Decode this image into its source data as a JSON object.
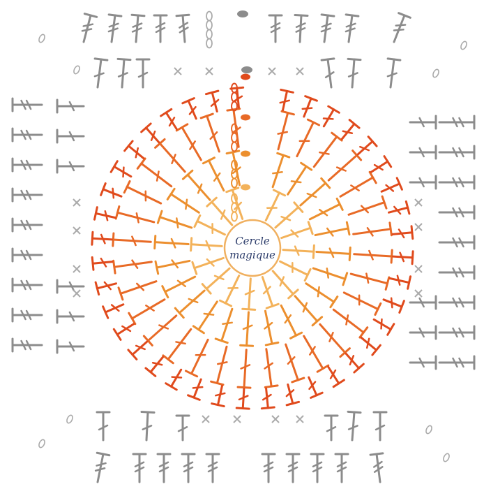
{
  "center": {
    "label_line1": "Cercle",
    "label_line2": "magique"
  },
  "colors": {
    "round1": "#f3b25a",
    "round2": "#ec8f2e",
    "round3": "#e86a26",
    "round4": "#e04a1c",
    "square": "#8c8c8c",
    "chain_mark": "#e86a26",
    "text": "#2d3d6b"
  },
  "symbols": {
    "dc": "double-crochet",
    "hdc": "half-double-crochet",
    "sc": "single-crochet-x",
    "ch": "chain-oval",
    "shell": "dc-group-v"
  }
}
